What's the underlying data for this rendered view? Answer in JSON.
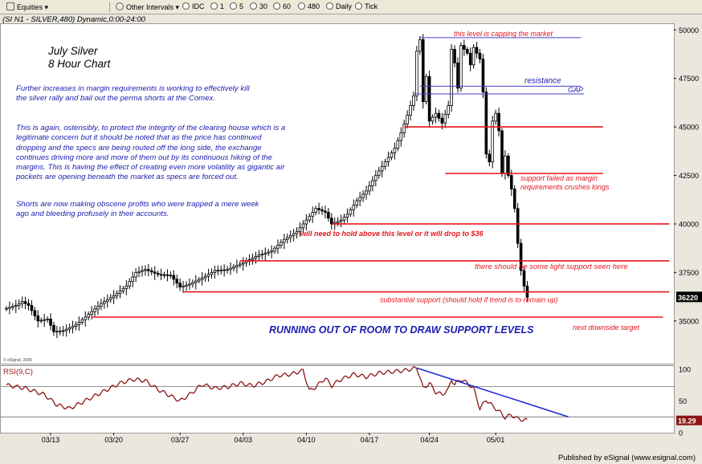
{
  "toolbar": {
    "items": [
      "Equities",
      "Other Intervals",
      "IDC",
      "1",
      "5",
      "30",
      "60",
      "480",
      "Daily",
      "Tick"
    ]
  },
  "header": {
    "title": "(SI N1 - SILVER,480) Dynamic,0:00-24:00"
  },
  "annotations": {
    "chart_title_1": "July Silver",
    "chart_title_2": "8 Hour Chart",
    "para1": "Further increases in margin requirements is working to effectively kill the silver rally and bail out the perma shorts at the Comex.",
    "para2": "This is again, ostensibly, to protect the integrity of the clearing house which is a legitimate concern but it should be noted that as the price has continued dropping and the specs are being routed off the long side, the exchange continues driving more and more of them out by its continuous hiking of the margins. This is having the effect of creating even more volatility as gigantic air pockets are opening beneath the market as specs are forced out.",
    "para3": "Shorts are now making obscene profits who were trapped a mere week ago and bleeding profusely in their accounts.",
    "capping": "this level is capping the market",
    "resistance": "resistance",
    "gap": "GAP",
    "support_failed_1": "support failed as margin",
    "support_failed_2": "requirements crushes longs",
    "hold_above": "will need to hold above this level or it will drop to $36",
    "light_support": "there should be some light support seen here",
    "substantial": "substantial support (should hold if trend is to remain up)",
    "running_out": "RUNNING OUT OF ROOM TO DRAW SUPPORT LEVELS",
    "next_target": "next downside target",
    "copyright": "© eSignal, 2009"
  },
  "footer": {
    "text": "Published by eSignal (www.esignal.com)"
  },
  "colors": {
    "accent_red": "#e8141c",
    "accent_blue": "#1c1cb0",
    "rsi_line": "#8c1616",
    "price_box": "#000000"
  },
  "chart_data": [
    {
      "type": "candlestick",
      "title": "",
      "ylim": [
        32800,
        50300
      ],
      "yticks": [
        35000,
        37500,
        40000,
        42500,
        45000,
        47500,
        50000
      ],
      "ytick_labels": [
        "35000",
        "37500",
        "40000",
        "42500",
        "45000",
        "47500",
        "50000"
      ],
      "x_labels": [
        "03/13",
        "03/20",
        "03/27",
        "04/03",
        "04/10",
        "04/17",
        "04/24",
        "05/01"
      ],
      "x_label_bar_index": [
        14,
        34,
        55,
        75,
        95,
        115,
        134,
        155
      ],
      "last_price_label": "36220",
      "last_price": 36220,
      "grid": false,
      "keypoints": [
        [
          0,
          35650
        ],
        [
          3,
          35800
        ],
        [
          5,
          36000
        ],
        [
          7,
          35800
        ],
        [
          10,
          35000
        ],
        [
          13,
          35100
        ],
        [
          15,
          34450
        ],
        [
          18,
          34500
        ],
        [
          22,
          34800
        ],
        [
          25,
          35200
        ],
        [
          30,
          35900
        ],
        [
          34,
          36300
        ],
        [
          38,
          36800
        ],
        [
          41,
          37500
        ],
        [
          44,
          37650
        ],
        [
          48,
          37400
        ],
        [
          52,
          37350
        ],
        [
          55,
          36750
        ],
        [
          58,
          36900
        ],
        [
          63,
          37300
        ],
        [
          66,
          37600
        ],
        [
          70,
          37650
        ],
        [
          75,
          38000
        ],
        [
          80,
          38400
        ],
        [
          84,
          38600
        ],
        [
          88,
          39200
        ],
        [
          92,
          39600
        ],
        [
          95,
          40200
        ],
        [
          98,
          40800
        ],
        [
          101,
          40600
        ],
        [
          103,
          40000
        ],
        [
          106,
          40200
        ],
        [
          108,
          40500
        ],
        [
          111,
          41200
        ],
        [
          114,
          41700
        ],
        [
          117,
          42500
        ],
        [
          120,
          43200
        ],
        [
          123,
          43900
        ],
        [
          125,
          44700
        ],
        [
          127,
          45600
        ],
        [
          129,
          46600
        ],
        [
          130,
          48900
        ],
        [
          131,
          49500
        ],
        [
          132,
          46300
        ],
        [
          133,
          47600
        ],
        [
          134,
          45300
        ],
        [
          136,
          45700
        ],
        [
          138,
          45200
        ],
        [
          140,
          46100
        ],
        [
          141,
          49000
        ],
        [
          142,
          48300
        ],
        [
          143,
          47000
        ],
        [
          144,
          49200
        ],
        [
          146,
          48800
        ],
        [
          147,
          48200
        ],
        [
          148,
          49100
        ],
        [
          150,
          48500
        ],
        [
          151,
          46800
        ],
        [
          152,
          43600
        ],
        [
          153,
          43200
        ],
        [
          154,
          45300
        ],
        [
          155,
          45700
        ],
        [
          156,
          44800
        ],
        [
          157,
          42600
        ],
        [
          158,
          43500
        ],
        [
          159,
          42500
        ],
        [
          160,
          41800
        ],
        [
          161,
          40800
        ],
        [
          162,
          39000
        ],
        [
          163,
          37600
        ],
        [
          164,
          36800
        ],
        [
          165,
          36220
        ]
      ],
      "levels": [
        {
          "value": 49600,
          "color": "#4040c8",
          "bar_start": 131,
          "bar_end": 182,
          "label": "this level is capping the market"
        },
        {
          "value": 47100,
          "color": "#4040c8",
          "bar_start": 131,
          "bar_end": 182,
          "label": "resistance"
        },
        {
          "value": 46700,
          "color": "#4040c8",
          "bar_start": 129,
          "bar_end": 183,
          "label": "GAP"
        },
        {
          "value": 45000,
          "color": "#e8141c",
          "bar_start": 126,
          "bar_end": 189,
          "label": ""
        },
        {
          "value": 42600,
          "color": "#e8141c",
          "bar_start": 139,
          "bar_end": 189,
          "label": "support failed as margin requirements crushes longs"
        },
        {
          "value": 40000,
          "color": "#e8141c",
          "bar_start": 103,
          "bar_end": 210,
          "label": "will need to hold above this level or it will drop to $36"
        },
        {
          "value": 38100,
          "color": "#e8141c",
          "bar_start": 74,
          "bar_end": 210,
          "label": "there should be some light support seen here"
        },
        {
          "value": 36500,
          "color": "#e8141c",
          "bar_start": 56,
          "bar_end": 210,
          "label": "substantial support (should hold if trend is to remain up)"
        },
        {
          "value": 35200,
          "color": "#e8141c",
          "bar_start": 27,
          "bar_end": 208,
          "label": "next downside target"
        }
      ]
    },
    {
      "type": "line",
      "title": "RSI(9,C)",
      "ylim": [
        0,
        105
      ],
      "yticks": [
        0,
        50,
        100
      ],
      "ytick_labels": [
        "0",
        "50",
        "100"
      ],
      "reference_lines": [
        73,
        25
      ],
      "last_value_label": "19.29",
      "last_value": 19.29,
      "keypoints": [
        [
          0,
          75
        ],
        [
          6,
          70
        ],
        [
          12,
          60
        ],
        [
          16,
          44
        ],
        [
          20,
          38
        ],
        [
          24,
          48
        ],
        [
          28,
          58
        ],
        [
          32,
          68
        ],
        [
          36,
          78
        ],
        [
          40,
          84
        ],
        [
          44,
          82
        ],
        [
          48,
          68
        ],
        [
          52,
          58
        ],
        [
          55,
          50
        ],
        [
          58,
          60
        ],
        [
          62,
          76
        ],
        [
          66,
          70
        ],
        [
          70,
          72
        ],
        [
          74,
          78
        ],
        [
          78,
          74
        ],
        [
          82,
          80
        ],
        [
          86,
          90
        ],
        [
          90,
          92
        ],
        [
          94,
          98
        ],
        [
          96,
          66
        ],
        [
          98,
          72
        ],
        [
          101,
          86
        ],
        [
          103,
          74
        ],
        [
          106,
          84
        ],
        [
          110,
          92
        ],
        [
          114,
          88
        ],
        [
          118,
          94
        ],
        [
          122,
          96
        ],
        [
          126,
          98
        ],
        [
          130,
          102
        ],
        [
          131,
          88
        ],
        [
          132,
          70
        ],
        [
          134,
          78
        ],
        [
          136,
          64
        ],
        [
          138,
          60
        ],
        [
          140,
          68
        ],
        [
          141,
          84
        ],
        [
          142,
          76
        ],
        [
          144,
          84
        ],
        [
          146,
          78
        ],
        [
          148,
          70
        ],
        [
          150,
          38
        ],
        [
          152,
          52
        ],
        [
          154,
          42
        ],
        [
          156,
          34
        ],
        [
          158,
          24
        ],
        [
          160,
          28
        ],
        [
          162,
          22
        ],
        [
          164,
          20
        ],
        [
          165,
          19.29
        ]
      ],
      "trendline": [
        [
          130,
          102
        ],
        [
          178,
          25
        ]
      ]
    }
  ]
}
